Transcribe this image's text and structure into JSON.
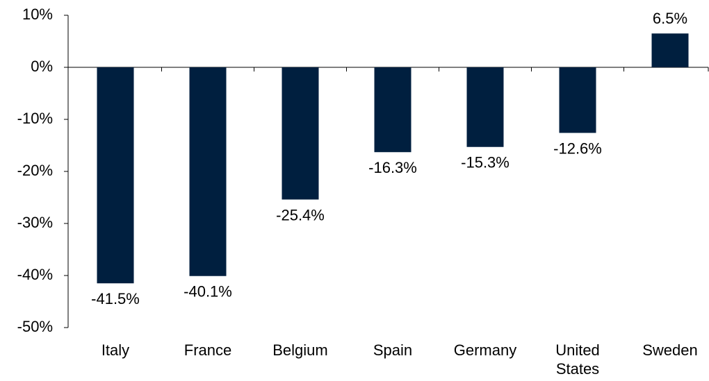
{
  "chart_data": {
    "type": "bar",
    "categories": [
      "Italy",
      "France",
      "Belgium",
      "Spain",
      "Germany",
      "United States",
      "Sweden"
    ],
    "values": [
      -41.5,
      -40.1,
      -25.4,
      -16.3,
      -15.3,
      -12.6,
      6.5
    ],
    "value_labels": [
      "-41.5%",
      "-40.1%",
      "-25.4%",
      "-16.3%",
      "-15.3%",
      "-12.6%",
      "6.5%"
    ],
    "color": "#001f3f",
    "ylim": [
      -50,
      10
    ],
    "yticks": [
      {
        "value": 10,
        "label": "10%"
      },
      {
        "value": 0,
        "label": "0%"
      },
      {
        "value": -10,
        "label": "-10%"
      },
      {
        "value": -20,
        "label": "-20%"
      },
      {
        "value": -30,
        "label": "-30%"
      },
      {
        "value": -40,
        "label": "-40%"
      },
      {
        "value": -50,
        "label": "-50%"
      }
    ],
    "grid": false
  }
}
